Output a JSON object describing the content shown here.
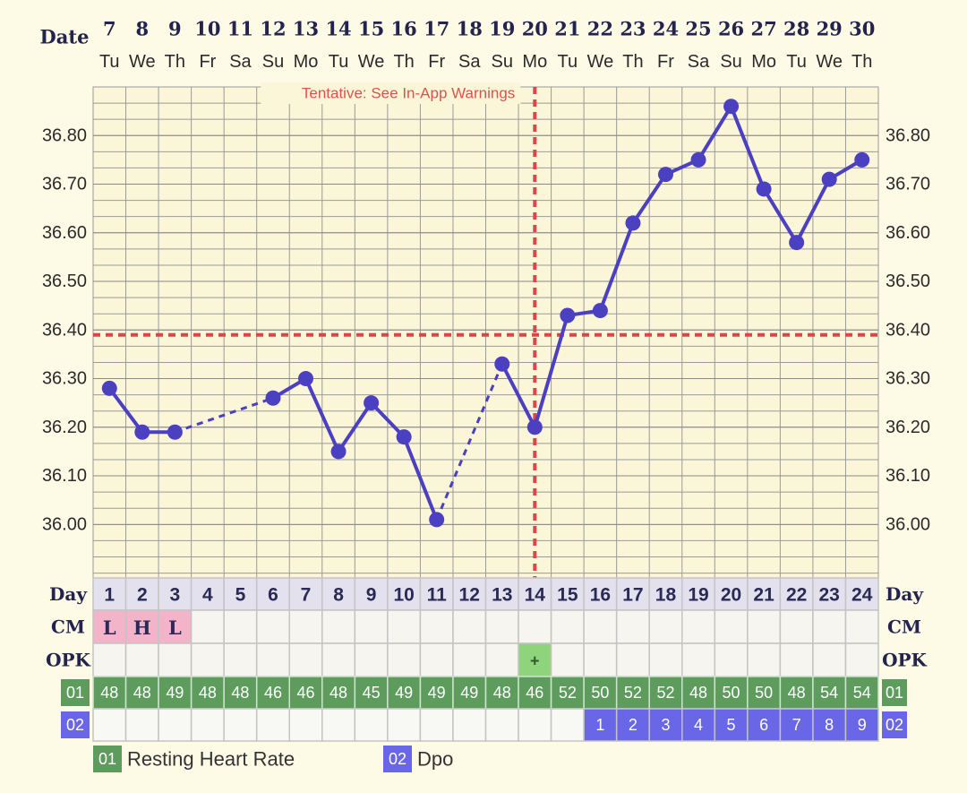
{
  "chart_data": {
    "type": "line",
    "date_label": "Date",
    "dates": [
      "7",
      "8",
      "9",
      "10",
      "11",
      "12",
      "13",
      "14",
      "15",
      "16",
      "17",
      "18",
      "19",
      "20",
      "21",
      "22",
      "23",
      "24",
      "25",
      "26",
      "27",
      "28",
      "29",
      "30"
    ],
    "weekdays": [
      "Tu",
      "We",
      "Th",
      "Fr",
      "Sa",
      "Su",
      "Mo",
      "Tu",
      "We",
      "Th",
      "Fr",
      "Sa",
      "Su",
      "Mo",
      "Tu",
      "We",
      "Th",
      "Fr",
      "Sa",
      "Su",
      "Mo",
      "Tu",
      "We",
      "Th"
    ],
    "values": [
      36.28,
      36.19,
      36.19,
      null,
      null,
      36.26,
      36.3,
      36.15,
      36.25,
      36.18,
      36.01,
      null,
      36.33,
      36.2,
      36.43,
      36.44,
      36.62,
      36.72,
      36.75,
      36.86,
      36.69,
      36.58,
      36.71,
      36.75
    ],
    "color": "#4b3fc2",
    "ylim": [
      35.89,
      36.9
    ],
    "yticks": [
      {
        "value": 36.0,
        "label": "36.00"
      },
      {
        "value": 36.1,
        "label": "36.10"
      },
      {
        "value": 36.2,
        "label": "36.20"
      },
      {
        "value": 36.3,
        "label": "36.30"
      },
      {
        "value": 36.4,
        "label": "36.40"
      },
      {
        "value": 36.5,
        "label": "36.50"
      },
      {
        "value": 36.6,
        "label": "36.60"
      },
      {
        "value": 36.7,
        "label": "36.70"
      },
      {
        "value": 36.8,
        "label": "36.80"
      }
    ],
    "grid": true,
    "coverline": 36.39,
    "ovulation_day": 14,
    "annotation": "Tentative: See In-App Warnings",
    "day_label": "Day",
    "days": [
      1,
      2,
      3,
      4,
      5,
      6,
      7,
      8,
      9,
      10,
      11,
      12,
      13,
      14,
      15,
      16,
      17,
      18,
      19,
      20,
      21,
      22,
      23,
      24
    ],
    "cm_label": "CM",
    "cm": [
      "L",
      "H",
      "L",
      null,
      null,
      null,
      null,
      null,
      null,
      null,
      null,
      null,
      null,
      null,
      null,
      null,
      null,
      null,
      null,
      null,
      null,
      null,
      null,
      null
    ],
    "opk_label": "OPK",
    "opk": [
      null,
      null,
      null,
      null,
      null,
      null,
      null,
      null,
      null,
      null,
      null,
      null,
      null,
      "+",
      null,
      null,
      null,
      null,
      null,
      null,
      null,
      null,
      null,
      null
    ],
    "rhr": {
      "badge": "01",
      "name": "Resting Heart Rate",
      "color": "#5e9c5e",
      "values": [
        48,
        48,
        49,
        48,
        48,
        46,
        46,
        48,
        45,
        49,
        49,
        49,
        48,
        46,
        52,
        50,
        52,
        52,
        48,
        50,
        50,
        48,
        54,
        54
      ]
    },
    "dpo": {
      "badge": "02",
      "name": "Dpo",
      "color": "#6a66e8",
      "values": [
        null,
        null,
        null,
        null,
        null,
        null,
        null,
        null,
        null,
        null,
        null,
        null,
        null,
        null,
        null,
        1,
        2,
        3,
        4,
        5,
        6,
        7,
        8,
        9
      ]
    }
  }
}
